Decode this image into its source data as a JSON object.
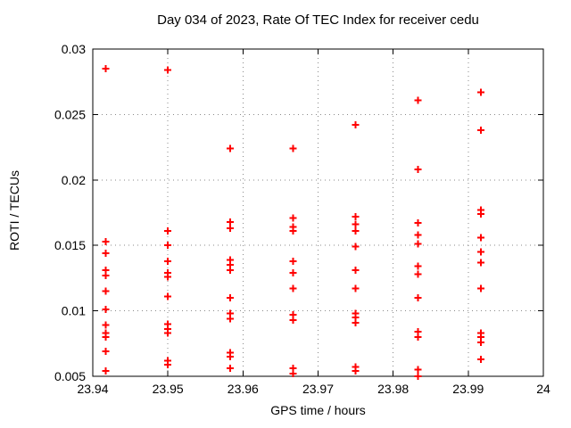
{
  "page": {
    "background": "#ffffff",
    "border_color": "#000000",
    "grid_color": "#8a8a8a",
    "text_color": "#000000"
  },
  "chart_data": {
    "type": "scatter",
    "title": "Day 034 of 2023, Rate Of TEC Index for receiver cedu",
    "xlabel": "GPS time / hours",
    "ylabel": "ROTI / TECUs",
    "xlim": [
      23.94,
      24
    ],
    "ylim": [
      0.005,
      0.03
    ],
    "xtick_values": [
      23.94,
      23.95,
      23.96,
      23.97,
      23.98,
      23.99,
      24
    ],
    "xtick_labels": [
      "23.94",
      "23.95",
      "23.96",
      "23.97",
      "23.98",
      "23.99",
      "24"
    ],
    "ytick_values": [
      0.005,
      0.01,
      0.015,
      0.02,
      0.025,
      0.03
    ],
    "ytick_labels": [
      "0.005",
      "0.01",
      "0.015",
      "0.02",
      "0.025",
      "0.03"
    ],
    "grid": true,
    "legend": "none",
    "marker": "plus",
    "marker_color": "#ff0000",
    "columns": [
      {
        "x": 23.9417,
        "y": [
          0.0285,
          0.0153,
          0.0144,
          0.0131,
          0.0127,
          0.0115,
          0.0101,
          0.0089,
          0.0083,
          0.008,
          0.0069,
          0.0054
        ]
      },
      {
        "x": 23.95,
        "y": [
          0.0284,
          0.0161,
          0.015,
          0.0138,
          0.0129,
          0.0126,
          0.0111,
          0.009,
          0.0086,
          0.0083,
          0.0062,
          0.0059
        ]
      },
      {
        "x": 23.9583,
        "y": [
          0.0224,
          0.0168,
          0.0163,
          0.0139,
          0.0135,
          0.0131,
          0.011,
          0.0098,
          0.0094,
          0.0068,
          0.0065,
          0.0056
        ]
      },
      {
        "x": 23.9667,
        "y": [
          0.0224,
          0.0171,
          0.0164,
          0.0161,
          0.0138,
          0.0129,
          0.0117,
          0.0097,
          0.0093,
          0.0056,
          0.0052
        ]
      },
      {
        "x": 23.975,
        "y": [
          0.0242,
          0.0172,
          0.0166,
          0.0161,
          0.0149,
          0.0131,
          0.0117,
          0.0098,
          0.0095,
          0.0091,
          0.0057,
          0.0054
        ]
      },
      {
        "x": 23.9833,
        "y": [
          0.0261,
          0.0208,
          0.0167,
          0.0158,
          0.0151,
          0.0134,
          0.0128,
          0.011,
          0.0084,
          0.008,
          0.0055,
          0.005
        ]
      },
      {
        "x": 23.9917,
        "y": [
          0.0267,
          0.0238,
          0.0177,
          0.0174,
          0.0156,
          0.0145,
          0.0137,
          0.0117,
          0.0083,
          0.008,
          0.0076,
          0.0063
        ]
      }
    ]
  }
}
